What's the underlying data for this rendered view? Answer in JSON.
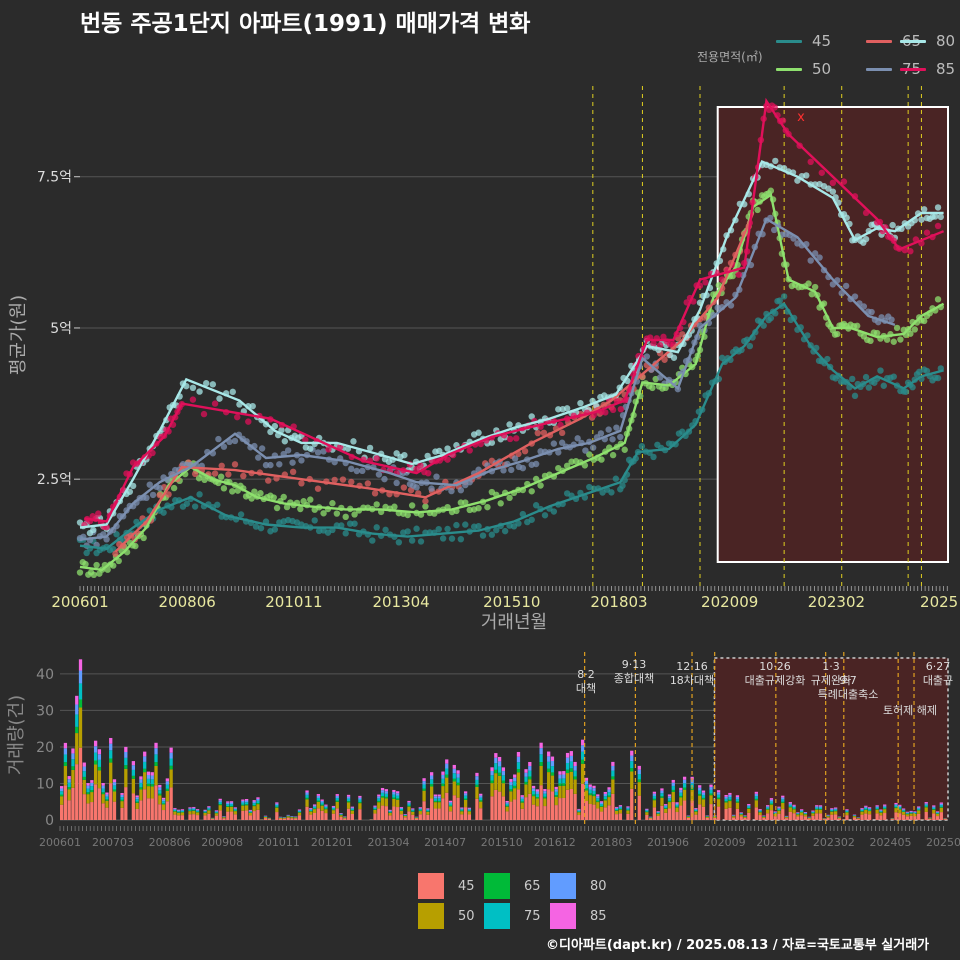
{
  "title": "번동 주공1단지 아파트(1991) 매매가격 변화",
  "footer": "©디아파트(dapt.kr) / 2025.08.13 / 자료=국토교통부 실거래가",
  "colors": {
    "45": "#2a8c8c",
    "50": "#8ee06e",
    "65": "#e06060",
    "75": "#7b8fb0",
    "80": "#a8e8e8",
    "85": "#e0105a",
    "bar45": "#f8766d",
    "bar50": "#b79f00",
    "bar65": "#00ba38",
    "bar75": "#00bfc4",
    "bar80": "#619cff",
    "bar85": "#f564e3"
  },
  "legend": {
    "title": "전용면적(㎡)",
    "items": [
      "45",
      "65",
      "80",
      "50",
      "75",
      "85"
    ]
  },
  "bottom_legend": {
    "items": [
      "45",
      "65",
      "80",
      "50",
      "75",
      "85"
    ]
  },
  "chart_data": [
    {
      "type": "line",
      "xlabel": "거래년월",
      "ylabel": "평균가(원)",
      "x_ticks": [
        "200601",
        "200806",
        "201011",
        "201304",
        "201510",
        "201803",
        "202009",
        "202302",
        "2025"
      ],
      "y_ticks": [
        "2.5억",
        "5억",
        "7.5억"
      ],
      "y_tick_values": [
        25000,
        50000,
        75000
      ],
      "ylim": [
        8000,
        90000
      ],
      "xlim": [
        2006.0,
        2025.6
      ],
      "grid": true,
      "policy_lines": [
        2017.58,
        2018.7,
        2020.0,
        2021.9,
        2023.2,
        2024.7,
        2025.0
      ],
      "annotation": "x",
      "highlight_region": [
        2020.4,
        2025.6
      ],
      "series": [
        {
          "name": "45",
          "x": [
            2006.0,
            2006.6,
            2007.2,
            2007.8,
            2008.5,
            2009.3,
            2010.2,
            2011.0,
            2011.8,
            2012.6,
            2013.4,
            2014.2,
            2015.0,
            2015.8,
            2016.6,
            2017.4,
            2018.2,
            2018.6,
            2019.3,
            2019.9,
            2020.5,
            2021.0,
            2021.5,
            2021.9,
            2022.5,
            2023.0,
            2023.5,
            2024.0,
            2024.6,
            2025.0,
            2025.5
          ],
          "y": [
            14000,
            13500,
            17000,
            20000,
            22000,
            19000,
            17500,
            17000,
            17000,
            16000,
            15500,
            16000,
            16500,
            18000,
            20500,
            22500,
            24500,
            29500,
            30000,
            34000,
            44000,
            47000,
            52000,
            54000,
            47000,
            43000,
            40000,
            42000,
            40000,
            42000,
            43000
          ]
        },
        {
          "name": "50",
          "x": [
            2006.0,
            2006.5,
            2007.0,
            2007.5,
            2008.0,
            2008.5,
            2009.0,
            2009.5,
            2010.0,
            2010.6,
            2011.2,
            2012.0,
            2012.8,
            2013.6,
            2014.4,
            2015.2,
            2016.0,
            2016.8,
            2017.6,
            2018.3,
            2018.7,
            2019.3,
            2019.9,
            2020.3,
            2020.8,
            2021.2,
            2021.6,
            2022.0,
            2022.6,
            2023.0,
            2023.4,
            2024.0,
            2024.6,
            2025.0,
            2025.5
          ],
          "y": [
            10500,
            10000,
            13000,
            17000,
            24000,
            27000,
            25000,
            24000,
            22000,
            21000,
            20500,
            20000,
            20000,
            19500,
            20000,
            21500,
            23500,
            26000,
            28500,
            31000,
            41000,
            40500,
            44000,
            55000,
            60000,
            70000,
            72000,
            58000,
            56000,
            50000,
            50000,
            48500,
            49000,
            52000,
            54000
          ]
        },
        {
          "name": "65",
          "x": [
            2006.8,
            2007.5,
            2008.3,
            2009.5,
            2011.0,
            2012.5,
            2013.8,
            2015.0,
            2016.2,
            2017.3,
            2018.0,
            2018.8,
            2019.6,
            2020.4,
            2021.2
          ],
          "y": [
            13000,
            18000,
            27000,
            26500,
            25000,
            23500,
            22000,
            26000,
            31000,
            35000,
            38000,
            43000,
            48000,
            55000,
            69000
          ]
        },
        {
          "name": "75",
          "x": [
            2006.0,
            2006.6,
            2007.2,
            2007.8,
            2008.5,
            2009.5,
            2010.2,
            2011.0,
            2012.0,
            2013.0,
            2013.6,
            2014.5,
            2015.3,
            2016.0,
            2016.8,
            2017.5,
            2018.2,
            2018.7,
            2019.5,
            2020.0,
            2020.8,
            2021.5,
            2022.2,
            2023.0,
            2023.8,
            2024.4
          ],
          "y": [
            15000,
            15500,
            21000,
            24500,
            27000,
            32500,
            28500,
            29000,
            28000,
            26000,
            24500,
            24000,
            26500,
            28000,
            30000,
            31000,
            33000,
            45000,
            40000,
            50000,
            55000,
            68000,
            65000,
            58000,
            52000,
            50500
          ]
        },
        {
          "name": "80",
          "x": [
            2006.0,
            2006.6,
            2007.2,
            2007.8,
            2008.4,
            2009.6,
            2010.4,
            2011.0,
            2011.8,
            2012.8,
            2013.5,
            2014.2,
            2015.0,
            2015.8,
            2016.6,
            2017.4,
            2018.1,
            2018.8,
            2019.5,
            2020.0,
            2020.6,
            2021.4,
            2022.2,
            2023.0,
            2023.5,
            2024.0,
            2024.4,
            2025.0,
            2025.5
          ],
          "y": [
            17000,
            17500,
            25000,
            33000,
            41500,
            38000,
            33000,
            31000,
            31000,
            29000,
            27500,
            29000,
            31500,
            33500,
            35000,
            37000,
            39000,
            47000,
            46000,
            53000,
            65000,
            77500,
            75000,
            71500,
            64500,
            66500,
            66000,
            69000,
            69000
          ]
        },
        {
          "name": "85",
          "x": [
            2006.1,
            2006.6,
            2007.2,
            2007.9,
            2008.3,
            2010.3,
            2012.4,
            2013.6,
            2014.3,
            2015.3,
            2016.4,
            2017.6,
            2018.3,
            2018.8,
            2019.4,
            2020.0,
            2021.0,
            2021.5,
            2022.0,
            2024.0,
            2024.5,
            2025.5
          ],
          "y": [
            18500,
            18000,
            27000,
            32000,
            37500,
            35000,
            28000,
            26000,
            29000,
            32000,
            34000,
            36000,
            38000,
            48000,
            48000,
            58000,
            60000,
            87500,
            82000,
            68000,
            63000,
            66000
          ]
        }
      ]
    },
    {
      "type": "bar",
      "ylabel": "거래량(건)",
      "x_ticks": [
        "200601",
        "200703",
        "200806",
        "200908",
        "201011",
        "201201",
        "201304",
        "201407",
        "201510",
        "201612",
        "201803",
        "201906",
        "202009",
        "202111",
        "202302",
        "202405",
        "20250"
      ],
      "y_ticks": [
        "0",
        "10",
        "20",
        "30",
        "40"
      ],
      "y_tick_values": [
        0,
        10,
        20,
        30,
        40
      ],
      "ylim": [
        0,
        46
      ],
      "xlim": [
        2006.0,
        2025.6
      ],
      "grid": true,
      "stacked": true,
      "series_names": [
        "45",
        "50",
        "65",
        "75",
        "80",
        "85"
      ],
      "highlight_region": [
        2020.4,
        2025.6
      ],
      "policy_lines": [
        2017.58,
        2018.7,
        2019.95,
        2020.45,
        2021.8,
        2022.9,
        2023.3,
        2024.5,
        2024.85
      ],
      "policy_labels": [
        {
          "date": "8·2",
          "text": "대책"
        },
        {
          "date": "9·13",
          "text": "종합대책"
        },
        {
          "date": "12·16",
          "text": "18차대책"
        },
        {
          "date": "10·26",
          "text": "대출규제강화"
        },
        {
          "date": "1·3",
          "text": "규제완화"
        },
        {
          "date": "9·7",
          "text": "특례대출축소"
        },
        {
          "date": "",
          "text": "토허제 해제"
        },
        {
          "date": "6·27",
          "text": "대출규"
        }
      ]
    }
  ]
}
